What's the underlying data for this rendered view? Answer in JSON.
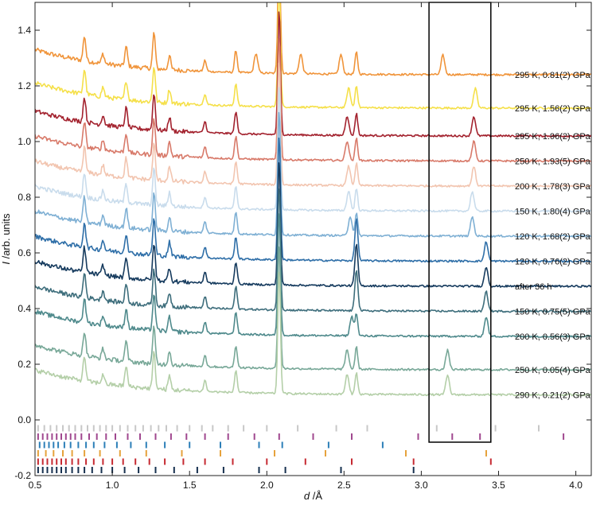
{
  "chart_data": {
    "type": "line",
    "title": "",
    "xlabel": "d",
    "xlabel_unit": " /Å",
    "ylabel": "I",
    "ylabel_unit": " /arb. units",
    "xlim": [
      0.5,
      4.1
    ],
    "ylim": [
      -0.2,
      1.5
    ],
    "xticks": [
      0.5,
      1.0,
      1.5,
      2.0,
      2.5,
      3.0,
      3.5,
      4.0
    ],
    "xtick_labels": [
      "0.5",
      "1.0",
      "1.5",
      "2.0",
      "2.5",
      "3.0",
      "3.5",
      "4.0"
    ],
    "yticks": [
      -0.2,
      0.0,
      0.2,
      0.4,
      0.6,
      0.8,
      1.0,
      1.2,
      1.4
    ],
    "ytick_labels": [
      "-0.2",
      "0.0",
      "0.2",
      "0.4",
      "0.6",
      "0.8",
      "1.0",
      "1.2",
      "1.4"
    ],
    "highlight_box": {
      "x_range": [
        3.05,
        3.45
      ],
      "y_range": [
        -0.08,
        1.5
      ]
    },
    "common_peaks_d": [
      0.82,
      0.94,
      1.09,
      1.27,
      1.37,
      1.6,
      1.8,
      2.08,
      2.58
    ],
    "series": [
      {
        "name": "295 K, 0.81(2) GPa",
        "color": "#f0943a",
        "offset": 1.24,
        "extra_peaks_d": [
          1.93,
          2.22,
          2.48,
          3.14
        ]
      },
      {
        "name": "295 K, 1.56(2) GPa",
        "color": "#f5e04a",
        "offset": 1.12,
        "extra_peaks_d": [
          2.53,
          3.35
        ]
      },
      {
        "name": "295 K, 1.96(2) GPa",
        "color": "#a3222e",
        "offset": 1.02,
        "extra_peaks_d": [
          2.52,
          3.34
        ]
      },
      {
        "name": "250 K, 1.93(5) GPa",
        "color": "#d87a6a",
        "offset": 0.93,
        "extra_peaks_d": [
          2.52,
          3.34
        ]
      },
      {
        "name": "200 K, 1.78(3) GPa",
        "color": "#f2c5b0",
        "offset": 0.84,
        "extra_peaks_d": [
          2.53,
          3.34
        ]
      },
      {
        "name": "150 K, 1.80(4) GPa",
        "color": "#c9dcec",
        "offset": 0.75,
        "extra_peaks_d": [
          2.53,
          3.33
        ]
      },
      {
        "name": "120 K, 1.68(2) GPa",
        "color": "#7fb0d4",
        "offset": 0.66,
        "extra_peaks_d": [
          2.54,
          3.33
        ]
      },
      {
        "name": "120 K, 0.76(2) GPa",
        "color": "#2f6fa8",
        "offset": 0.57,
        "extra_peaks_d": [
          2.58,
          3.42
        ]
      },
      {
        "name": "after 36 h",
        "color": "#163b5e",
        "offset": 0.48,
        "extra_peaks_d": [
          2.58,
          3.42
        ]
      },
      {
        "name": "150 K, 0.75(5) GPa",
        "color": "#3e6e7c",
        "offset": 0.39,
        "extra_peaks_d": [
          2.58,
          3.42
        ]
      },
      {
        "name": "200 K, 0.56(3) GPa",
        "color": "#4f8a8c",
        "offset": 0.3,
        "extra_peaks_d": [
          2.55,
          3.42
        ]
      },
      {
        "name": "250 K, 0.05(4) GPa",
        "color": "#78a898",
        "offset": 0.18,
        "extra_peaks_d": [
          2.52,
          3.17
        ]
      },
      {
        "name": "290 K, 0.21(2) GPa",
        "color": "#b4cfa8",
        "offset": 0.09,
        "extra_peaks_d": [
          2.52,
          3.17
        ]
      }
    ],
    "reflection_markers": [
      {
        "color": "#c8c8c8",
        "y": -0.03,
        "positions": [
          0.52,
          0.56,
          0.6,
          0.64,
          0.68,
          0.72,
          0.76,
          0.8,
          0.84,
          0.88,
          0.92,
          0.96,
          1.0,
          1.05,
          1.1,
          1.15,
          1.2,
          1.25,
          1.3,
          1.35,
          1.42,
          1.5,
          1.58,
          1.65,
          1.75,
          1.85,
          2.0,
          2.2,
          2.45,
          2.65,
          3.1,
          3.48,
          3.76
        ]
      },
      {
        "color": "#a0488f",
        "y": -0.06,
        "positions": [
          0.52,
          0.55,
          0.58,
          0.61,
          0.64,
          0.67,
          0.7,
          0.73,
          0.76,
          0.8,
          0.85,
          0.9,
          0.96,
          1.02,
          1.1,
          1.18,
          1.28,
          1.38,
          1.48,
          1.6,
          1.75,
          1.92,
          2.08,
          2.3,
          2.55,
          2.98,
          3.2,
          3.38,
          3.92
        ]
      },
      {
        "color": "#2c7fb8",
        "y": -0.09,
        "positions": [
          0.53,
          0.56,
          0.59,
          0.62,
          0.65,
          0.69,
          0.73,
          0.78,
          0.83,
          0.88,
          0.95,
          1.03,
          1.12,
          1.22,
          1.34,
          1.5,
          1.7,
          1.95,
          2.1,
          2.4,
          2.75
        ]
      },
      {
        "color": "#e6a23c",
        "y": -0.12,
        "positions": [
          0.52,
          0.57,
          0.62,
          0.68,
          0.74,
          0.82,
          0.92,
          1.05,
          1.22,
          1.45,
          1.7,
          2.05,
          2.38,
          2.9,
          3.42
        ]
      },
      {
        "color": "#c62a32",
        "y": -0.15,
        "positions": [
          0.52,
          0.55,
          0.58,
          0.61,
          0.64,
          0.67,
          0.7,
          0.74,
          0.78,
          0.83,
          0.88,
          0.94,
          1.0,
          1.07,
          1.15,
          1.24,
          1.34,
          1.46,
          1.6,
          1.78,
          2.0,
          2.25,
          2.55,
          2.95,
          3.45
        ]
      },
      {
        "color": "#16304f",
        "y": -0.18,
        "positions": [
          0.52,
          0.55,
          0.58,
          0.61,
          0.64,
          0.67,
          0.7,
          0.74,
          0.78,
          0.82,
          0.87,
          0.93,
          1.0,
          1.08,
          1.17,
          1.28,
          1.4,
          1.55,
          1.72,
          1.95,
          2.12,
          2.48,
          2.95
        ]
      }
    ]
  }
}
